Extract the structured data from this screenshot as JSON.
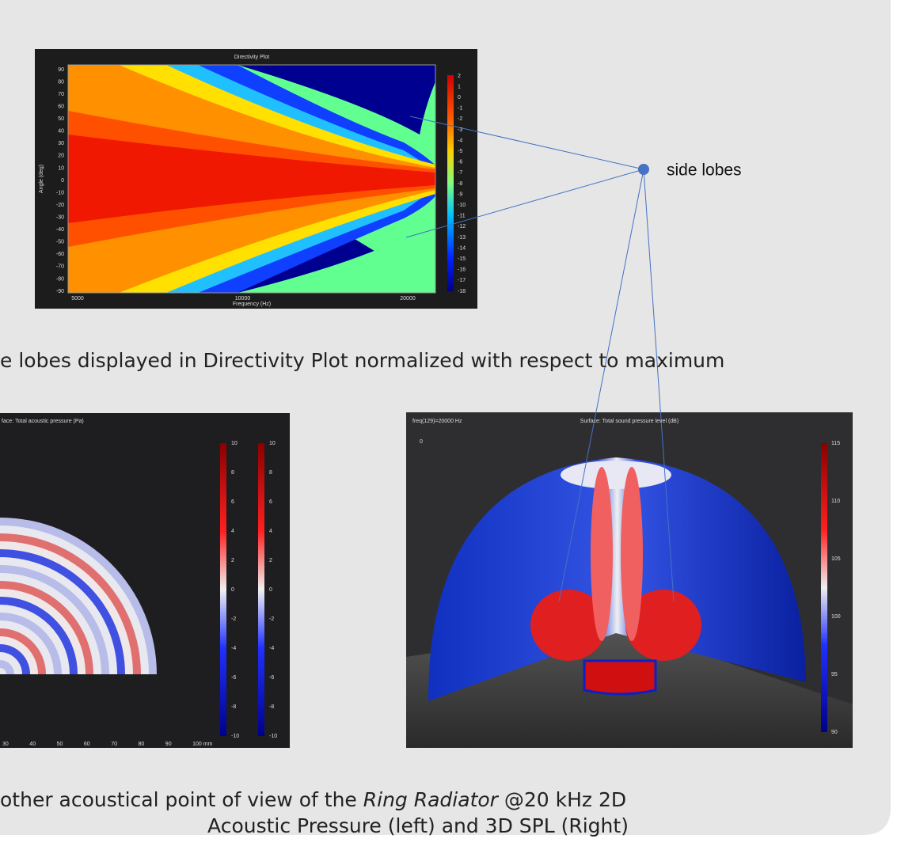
{
  "annotation": "side lobes",
  "caption1": "e lobes displayed in Directivity Plot normalized with respect to maximum",
  "caption2": {
    "line1_start": "other acoustical point of view of the ",
    "line1_italic": "Ring Radiator",
    "line1_end": " @20 kHz 2D",
    "line2": "Acoustic Pressure (left) and 3D SPL (Right)"
  },
  "directivity_plot": {
    "title": "Directivity Plot",
    "y_label": "Angle (deg)",
    "x_label": "Frequency (Hz)",
    "y_ticks": [
      90,
      80,
      70,
      60,
      50,
      40,
      30,
      20,
      10,
      0,
      -10,
      -20,
      -30,
      -40,
      -50,
      -60,
      -70,
      -80,
      -90
    ],
    "x_ticks": [
      5000,
      10000,
      20000
    ],
    "colorbar_ticks": [
      2,
      1,
      0,
      -1,
      -2,
      -3,
      -4,
      -5,
      -6,
      -7,
      -8,
      -9,
      -10,
      -11,
      -12,
      -13,
      -14,
      -15,
      -16,
      -17,
      -18
    ]
  },
  "pressure_plot": {
    "title": "face: Total acoustic pressure (Pa)",
    "colorbar_ticks": [
      10,
      8,
      6,
      4,
      2,
      0,
      -2,
      -4,
      -6,
      -8,
      -10
    ],
    "x_ticks": [
      30,
      40,
      50,
      60,
      70,
      80,
      90,
      "100 mm"
    ]
  },
  "spl_plot": {
    "frequency": "freq(129)=20000 Hz",
    "title": "Surface: Total sound pressure level (dB)",
    "axis_origin": 0,
    "colorbar_ticks": [
      115,
      110,
      105,
      100,
      95,
      90
    ]
  }
}
